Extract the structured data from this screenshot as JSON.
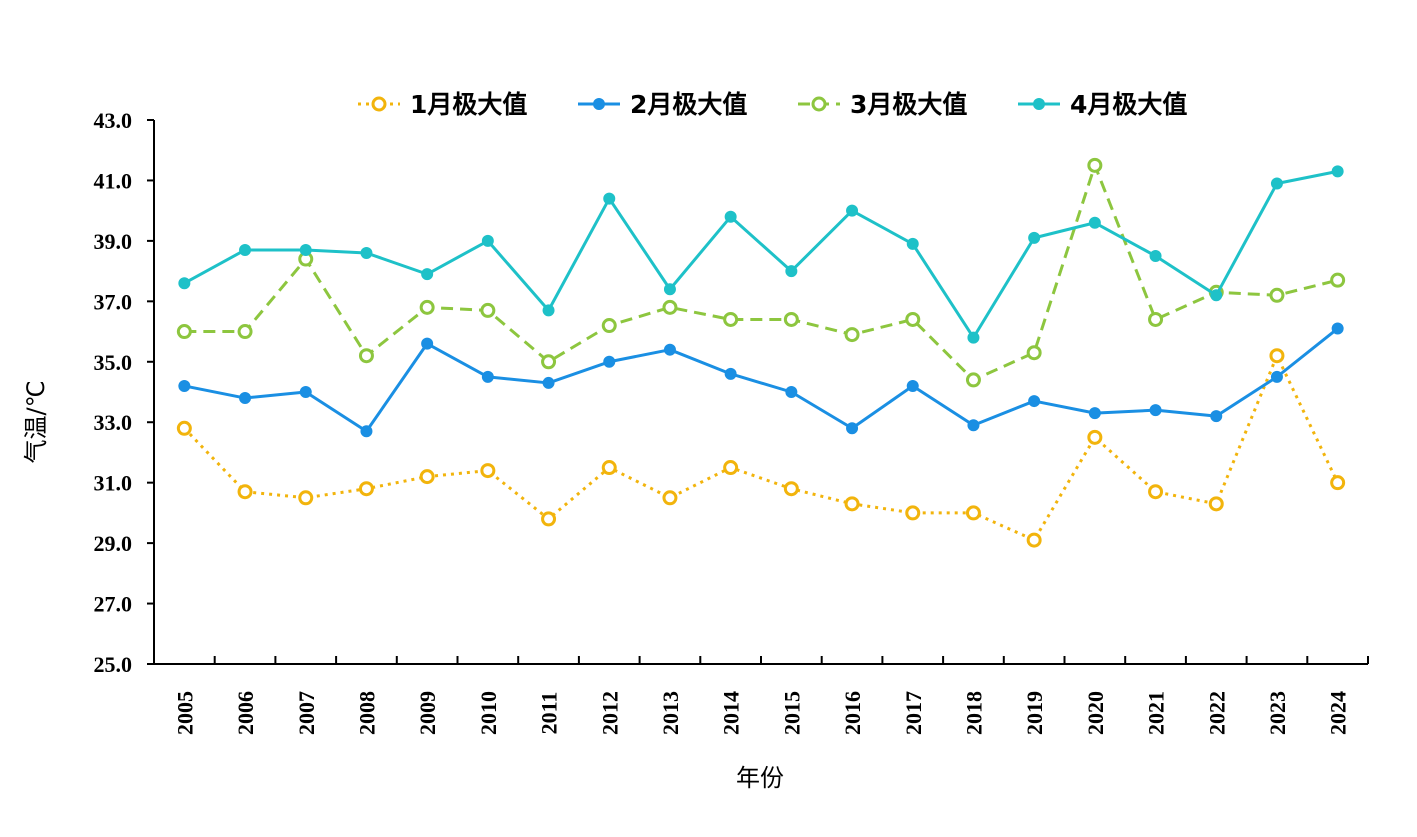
{
  "chart_data": {
    "type": "line",
    "xlabel": "年份",
    "ylabel": "气温/℃",
    "ylim": [
      25.0,
      43.0
    ],
    "yticks": [
      "25.0",
      "27.0",
      "29.0",
      "31.0",
      "33.0",
      "35.0",
      "37.0",
      "39.0",
      "41.0",
      "43.0"
    ],
    "categories": [
      "2005",
      "2006",
      "2007",
      "2008",
      "2009",
      "2010",
      "2011",
      "2012",
      "2013",
      "2014",
      "2015",
      "2016",
      "2017",
      "2018",
      "2019",
      "2020",
      "2021",
      "2022",
      "2023",
      "2024"
    ],
    "legend_position": "top",
    "grid": false,
    "series": [
      {
        "name": "1月极大值",
        "color": "#F2B40C",
        "line_style": "dotted",
        "marker": "hollow-circle",
        "values": [
          32.8,
          30.7,
          30.5,
          30.8,
          31.2,
          31.4,
          29.8,
          31.5,
          30.5,
          31.5,
          30.8,
          30.3,
          30.0,
          30.0,
          29.1,
          32.5,
          30.7,
          30.3,
          35.2,
          31.0
        ]
      },
      {
        "name": "2月极大值",
        "color": "#1A8FE3",
        "line_style": "solid",
        "marker": "filled-circle",
        "values": [
          34.2,
          33.8,
          34.0,
          32.7,
          35.6,
          34.5,
          34.3,
          35.0,
          35.4,
          34.6,
          34.0,
          32.8,
          34.2,
          32.9,
          33.7,
          33.3,
          33.4,
          33.2,
          34.5,
          36.1
        ]
      },
      {
        "name": "3月极大值",
        "color": "#8DC63F",
        "line_style": "dashed",
        "marker": "hollow-circle",
        "values": [
          36.0,
          36.0,
          38.4,
          35.2,
          36.8,
          36.7,
          35.0,
          36.2,
          36.8,
          36.4,
          36.4,
          35.9,
          36.4,
          34.4,
          35.3,
          41.5,
          36.4,
          37.3,
          37.2,
          37.7
        ]
      },
      {
        "name": "4月极大值",
        "color": "#1EC1C8",
        "line_style": "solid",
        "marker": "filled-circle",
        "values": [
          37.6,
          38.7,
          38.7,
          38.6,
          37.9,
          39.0,
          36.7,
          40.4,
          37.4,
          39.8,
          38.0,
          40.0,
          38.9,
          35.8,
          39.1,
          39.6,
          38.5,
          37.2,
          40.9,
          41.3
        ]
      }
    ]
  }
}
